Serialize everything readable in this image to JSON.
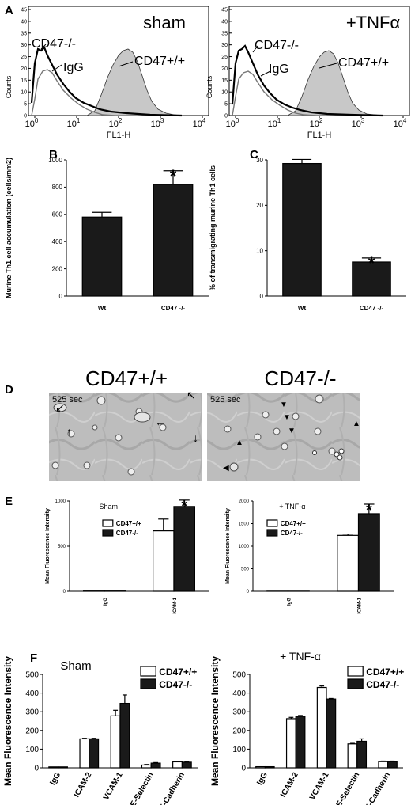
{
  "panels": {
    "A": "A",
    "B": "B",
    "C": "C",
    "D": "D",
    "E": "E",
    "F": "F"
  },
  "histograms": [
    {
      "title": "sham",
      "ylabel": "Counts",
      "xlabel": "FL1-H",
      "yticks": [
        "0",
        "5",
        "10",
        "15",
        "20",
        "25",
        "30",
        "35",
        "40",
        "45"
      ],
      "xticks": [
        {
          "base": "10",
          "exp": "0"
        },
        {
          "base": "10",
          "exp": "1"
        },
        {
          "base": "10",
          "exp": "2"
        },
        {
          "base": "10",
          "exp": "3"
        },
        {
          "base": "10",
          "exp": "4"
        }
      ],
      "labels": {
        "ko": "CD47-/-",
        "igg": "IgG",
        "wt": "CD47+/+"
      }
    },
    {
      "title": "+TNFα",
      "ylabel": "Counts",
      "xlabel": "FL1-H",
      "yticks": [
        "0",
        "5",
        "10",
        "15",
        "20",
        "25",
        "30",
        "35",
        "40",
        "45"
      ],
      "xticks": [
        {
          "base": "10",
          "exp": "0"
        },
        {
          "base": "10",
          "exp": "1"
        },
        {
          "base": "10",
          "exp": "2"
        },
        {
          "base": "10",
          "exp": "3"
        },
        {
          "base": "10",
          "exp": "4"
        }
      ],
      "labels": {
        "ko": "CD47-/-",
        "igg": "IgG",
        "wt": "CD47+/+"
      }
    }
  ],
  "chart_data": [
    {
      "id": "B",
      "type": "bar",
      "categories": [
        "Wt",
        "CD47 -/-"
      ],
      "values": [
        580,
        820
      ],
      "errors": [
        35,
        100
      ],
      "significance": [
        "",
        "*"
      ],
      "ylabel": "Murine Th1 cell accumulation (cells/mm2)",
      "ylim": [
        0,
        1000
      ],
      "yticks": [
        0,
        200,
        400,
        600,
        800,
        1000
      ],
      "bar_colors": [
        "#1a1a1a",
        "#1a1a1a"
      ]
    },
    {
      "id": "C",
      "type": "bar",
      "categories": [
        "Wt",
        "CD47 -/-"
      ],
      "values": [
        29.2,
        7.5
      ],
      "errors": [
        0.9,
        0.9
      ],
      "significance": [
        "",
        "*"
      ],
      "ylabel": "% of transmigrating murine Th1 cells",
      "ylim": [
        0,
        30
      ],
      "yticks": [
        0,
        10,
        20,
        30
      ],
      "bar_colors": [
        "#1a1a1a",
        "#1a1a1a"
      ]
    },
    {
      "id": "E-sham",
      "type": "bar",
      "title": "Sham",
      "categories": [
        "IgG",
        "ICAM-1"
      ],
      "series": [
        {
          "name": "CD47+/+",
          "values": [
            3,
            670
          ],
          "errors": [
            0,
            130
          ],
          "color": "#ffffff"
        },
        {
          "name": "CD47-/-",
          "values": [
            3,
            940
          ],
          "errors": [
            0,
            70
          ],
          "color": "#1a1a1a"
        }
      ],
      "significance": [
        "",
        "*"
      ],
      "ylabel": "Mean Fluorescence Intensity",
      "ylim": [
        0,
        1000
      ],
      "yticks": [
        0,
        500,
        1000
      ]
    },
    {
      "id": "E-tnf",
      "type": "bar",
      "title": "+ TNF-α",
      "categories": [
        "IgG",
        "ICAM-1"
      ],
      "series": [
        {
          "name": "CD47+/+",
          "values": [
            3,
            1240
          ],
          "errors": [
            0,
            30
          ],
          "color": "#ffffff"
        },
        {
          "name": "CD47-/-",
          "values": [
            3,
            1720
          ],
          "errors": [
            0,
            210
          ],
          "color": "#1a1a1a"
        }
      ],
      "significance": [
        "",
        "*"
      ],
      "ylabel": "Mean Fluorescence Intensity",
      "ylim": [
        0,
        2000
      ],
      "yticks": [
        0,
        500,
        1000,
        1500,
        2000
      ]
    },
    {
      "id": "F-sham",
      "type": "bar",
      "title": "Sham",
      "categories": [
        "IgG",
        "ICAM-2",
        "VCAM-1",
        "E-Selectin",
        "VE-Cadherin"
      ],
      "series": [
        {
          "name": "CD47+/+",
          "values": [
            5,
            155,
            278,
            15,
            32
          ],
          "errors": [
            0,
            3,
            30,
            3,
            3
          ],
          "color": "#ffffff"
        },
        {
          "name": "CD47-/-",
          "values": [
            5,
            155,
            345,
            25,
            30
          ],
          "errors": [
            0,
            3,
            45,
            3,
            3
          ],
          "color": "#1a1a1a"
        }
      ],
      "ylabel": "Mean Fluorescence Intensity",
      "ylim": [
        0,
        500
      ],
      "yticks": [
        0,
        100,
        200,
        300,
        400,
        500
      ]
    },
    {
      "id": "F-tnf",
      "type": "bar",
      "title": "+ TNF-α",
      "categories": [
        "IgG",
        "ICAM-2",
        "VCAM-1",
        "E-Selectin",
        "VE-Cadherin"
      ],
      "series": [
        {
          "name": "CD47+/+",
          "values": [
            6,
            263,
            430,
            128,
            33
          ],
          "errors": [
            0,
            7,
            8,
            3,
            3
          ],
          "color": "#ffffff"
        },
        {
          "name": "CD47-/-",
          "values": [
            6,
            275,
            368,
            142,
            33
          ],
          "errors": [
            0,
            5,
            3,
            13,
            3
          ],
          "color": "#1a1a1a"
        }
      ],
      "ylabel": "Mean Fluorescence Intensity",
      "ylim": [
        0,
        500
      ],
      "yticks": [
        0,
        100,
        200,
        300,
        400,
        500
      ]
    }
  ],
  "micrographs": [
    {
      "title": "CD47+/+",
      "time": "525 sec"
    },
    {
      "title": "CD47-/-",
      "time": "525 sec"
    }
  ]
}
